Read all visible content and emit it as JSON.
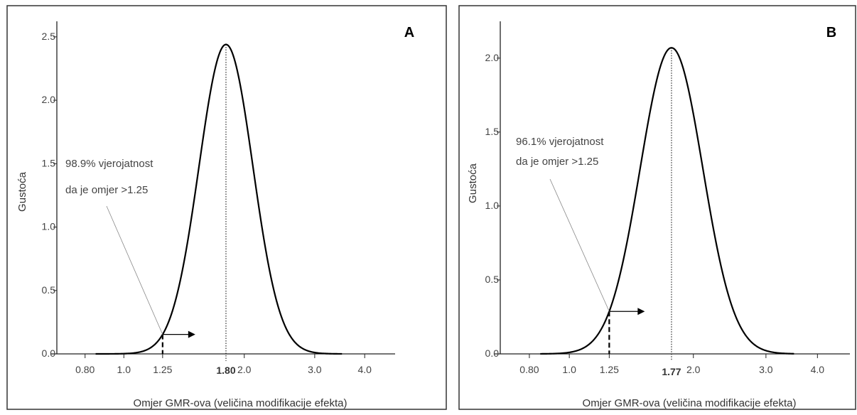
{
  "chart_data": [
    {
      "type": "line",
      "panel_label": "A",
      "xlabel": "Omjer GMR-ova (veličina modifikacije efekta)",
      "ylabel": "Gustoća",
      "x_scale": "log",
      "xlim": [
        0.68,
        4.5
      ],
      "ylim": [
        0,
        2.6
      ],
      "x_ticks": [
        0.8,
        1.0,
        1.25,
        2.0,
        3.0,
        4.0
      ],
      "x_tick_labels": [
        "0.80",
        "1.0",
        "1.25",
        "2.0",
        "3.0",
        "4.0"
      ],
      "y_ticks": [
        0,
        0.5,
        1.0,
        1.5,
        2.0,
        2.5
      ],
      "y_tick_labels": [
        "0.0",
        "0.5",
        "1.0",
        "1.5",
        "2.0",
        "2.5"
      ],
      "mean": 1.8,
      "mean_label": "1.80",
      "peak_density": 2.44,
      "threshold": 1.25,
      "threshold_label": "1.25",
      "annotation": [
        "98.9% vjerojatnost",
        "da je omjer >1.25"
      ],
      "curve_points": {
        "x": [
          1.0,
          1.1,
          1.2,
          1.25,
          1.3,
          1.4,
          1.5,
          1.6,
          1.7,
          1.8,
          1.9,
          2.0,
          2.1,
          2.2,
          2.4,
          2.6,
          2.8,
          3.0,
          3.2
        ],
        "y": [
          0.0,
          0.03,
          0.12,
          0.19,
          0.29,
          0.66,
          1.22,
          1.83,
          2.29,
          2.44,
          2.27,
          1.89,
          1.43,
          1.0,
          0.4,
          0.13,
          0.04,
          0.01,
          0.0
        ]
      }
    },
    {
      "type": "line",
      "panel_label": "B",
      "xlabel": "Omjer GMR-ova (veličina modifikacije efekta)",
      "ylabel": "Gustoća",
      "x_scale": "log",
      "xlim": [
        0.68,
        4.5
      ],
      "ylim": [
        0,
        2.22
      ],
      "x_ticks": [
        0.8,
        1.0,
        1.25,
        2.0,
        3.0,
        4.0
      ],
      "x_tick_labels": [
        "0.80",
        "1.0",
        "1.25",
        "2.0",
        "3.0",
        "4.0"
      ],
      "y_ticks": [
        0,
        0.5,
        1.0,
        1.5,
        2.0
      ],
      "y_tick_labels": [
        "0.0",
        "0.5",
        "1.0",
        "1.5",
        "2.0"
      ],
      "mean": 1.77,
      "mean_label": "1.77",
      "peak_density": 2.07,
      "threshold": 1.25,
      "threshold_label": "1.25",
      "annotation": [
        "96.1% vjerojatnost",
        "da je omjer >1.25"
      ],
      "curve_points": {
        "x": [
          0.9,
          1.0,
          1.1,
          1.2,
          1.25,
          1.3,
          1.4,
          1.5,
          1.6,
          1.7,
          1.77,
          1.9,
          2.0,
          2.2,
          2.4,
          2.6,
          2.8,
          3.0,
          3.3,
          3.6
        ],
        "y": [
          0.0,
          0.04,
          0.16,
          0.35,
          0.44,
          0.62,
          1.02,
          1.47,
          1.84,
          2.04,
          2.07,
          1.94,
          1.72,
          1.15,
          0.62,
          0.28,
          0.11,
          0.04,
          0.01,
          0.0
        ]
      }
    }
  ]
}
